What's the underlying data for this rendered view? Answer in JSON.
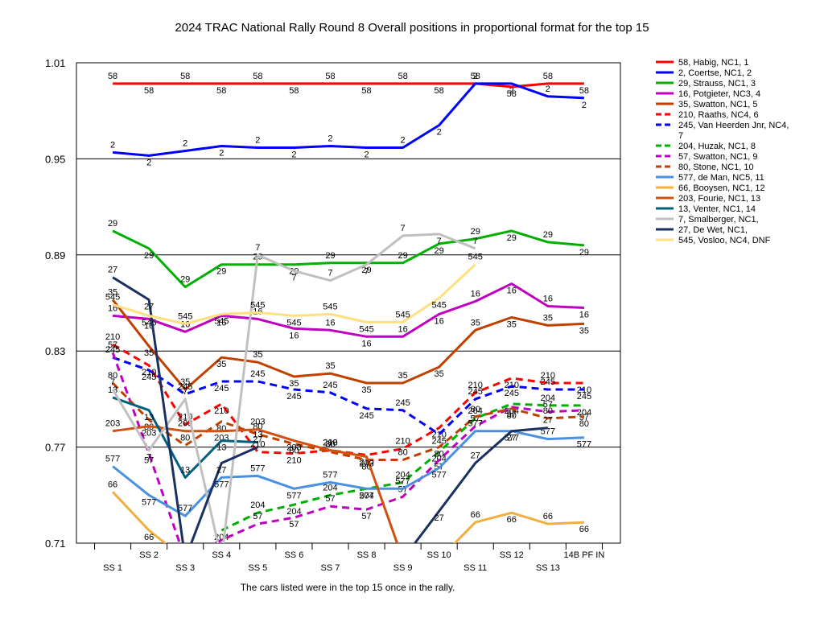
{
  "chart_data": {
    "type": "line",
    "title": "2024 TRAC National Rally Round 8  Overall positions in proportional format for the top 15",
    "footnote": "The cars listed were in the top 15 once in the rally.",
    "categories": [
      "SS 1",
      "SS 2",
      "SS 3",
      "SS 4",
      "SS 5",
      "SS 6",
      "SS 7",
      "SS 8",
      "SS 9",
      "SS 10",
      "SS 11",
      "SS 12",
      "SS 13",
      "14B PF IN"
    ],
    "yticks": [
      "1.01",
      "0.95",
      "0.89",
      "0.83",
      "0.77",
      "0.71"
    ],
    "ylim": [
      0.71,
      1.01
    ],
    "grid": true,
    "legend_position": "right",
    "series": [
      {
        "name": "58, Habig, NC1, 1",
        "label": "58",
        "color": "#ff0000",
        "dash": false,
        "values": [
          0.997,
          0.997,
          0.997,
          0.997,
          0.997,
          0.997,
          0.997,
          0.997,
          0.997,
          0.997,
          0.997,
          0.995,
          0.997,
          0.997
        ]
      },
      {
        "name": "2, Coertse, NC1, 2",
        "label": "2",
        "color": "#0000ff",
        "dash": false,
        "values": [
          0.954,
          0.952,
          0.955,
          0.958,
          0.957,
          0.957,
          0.958,
          0.957,
          0.957,
          0.971,
          0.997,
          0.997,
          0.989,
          0.988
        ]
      },
      {
        "name": "29, Strauss, NC1, 3",
        "label": "29",
        "color": "#00b000",
        "dash": false,
        "values": [
          0.905,
          0.894,
          0.87,
          0.884,
          0.884,
          0.884,
          0.885,
          0.885,
          0.885,
          0.897,
          0.9,
          0.905,
          0.898,
          0.896
        ]
      },
      {
        "name": "16, Potgieter, NC3, 4",
        "label": "16",
        "color": "#c000c0",
        "dash": false,
        "values": [
          0.852,
          0.85,
          0.842,
          0.852,
          0.85,
          0.844,
          0.843,
          0.839,
          0.839,
          0.853,
          0.861,
          0.872,
          0.858,
          0.857
        ]
      },
      {
        "name": "35, Swatton, NC1, 5",
        "label": "35",
        "color": "#c04000",
        "dash": false,
        "values": [
          0.862,
          0.833,
          0.806,
          0.826,
          0.823,
          0.814,
          0.816,
          0.81,
          0.81,
          0.82,
          0.843,
          0.851,
          0.846,
          0.847
        ]
      },
      {
        "name": "210, Raaths, NC4, 6",
        "label": "210",
        "color": "#ff0000",
        "dash": true,
        "values": [
          0.834,
          0.821,
          0.784,
          0.797,
          0.767,
          0.766,
          0.768,
          0.765,
          0.769,
          0.782,
          0.804,
          0.813,
          0.81,
          0.81
        ]
      },
      {
        "name": "245, Van Heerden Jnr, NC4, 7",
        "label": "245",
        "color": "#0000ff",
        "dash": true,
        "values": [
          0.826,
          0.818,
          0.803,
          0.811,
          0.811,
          0.806,
          0.804,
          0.794,
          0.793,
          0.778,
          0.8,
          0.808,
          0.806,
          0.806
        ]
      },
      {
        "name": "204, Huzak, NC1, 8",
        "label": "204",
        "color": "#00b000",
        "dash": true,
        "values": [
          null,
          null,
          null,
          0.718,
          0.729,
          0.734,
          0.74,
          0.744,
          0.748,
          0.767,
          0.788,
          0.797,
          0.796,
          0.796
        ]
      },
      {
        "name": "57, Swatton, NC1, 9",
        "label": "57",
        "color": "#c000c0",
        "dash": true,
        "values": [
          0.829,
          0.766,
          0.7,
          0.712,
          0.722,
          0.726,
          0.733,
          0.731,
          0.739,
          0.762,
          0.783,
          0.795,
          0.792,
          0.793
        ]
      },
      {
        "name": "80, Stone, NC1, 10",
        "label": "80",
        "color": "#c04000",
        "dash": true,
        "values": [
          0.81,
          0.787,
          0.771,
          0.786,
          0.778,
          0.772,
          0.767,
          0.762,
          0.762,
          0.77,
          0.789,
          0.794,
          0.788,
          0.789
        ]
      },
      {
        "name": "577, de Man, NC5, 11",
        "label": "577",
        "color": "#4a90e2",
        "dash": false,
        "values": [
          0.758,
          0.74,
          0.727,
          0.751,
          0.752,
          0.744,
          0.748,
          0.744,
          0.744,
          0.757,
          0.78,
          0.78,
          0.775,
          0.776
        ]
      },
      {
        "name": "66, Booysen, NC1, 12",
        "label": "66",
        "color": "#f0b040",
        "dash": false,
        "values": [
          0.742,
          0.718,
          0.7,
          null,
          null,
          null,
          null,
          null,
          null,
          0.7,
          0.723,
          0.729,
          0.722,
          0.723
        ]
      },
      {
        "name": "203, Fourie, NC1, 13",
        "label": "203",
        "color": "#d05010",
        "dash": false,
        "values": [
          0.78,
          0.783,
          0.78,
          0.78,
          0.781,
          0.774,
          0.768,
          0.764,
          0.7,
          null,
          null,
          null,
          null,
          null
        ]
      },
      {
        "name": "13, Venter, NC1, 14",
        "label": "13",
        "color": "#006080",
        "dash": false,
        "values": [
          0.801,
          0.793,
          0.751,
          0.774,
          0.773,
          null,
          null,
          null,
          null,
          null,
          null,
          null,
          null,
          null
        ]
      },
      {
        "name": "7, Smalberger, NC1,",
        "label": "7",
        "color": "#c0c0c0",
        "dash": false,
        "values": [
          0.806,
          0.768,
          0.8,
          0.7,
          0.89,
          0.88,
          0.874,
          0.884,
          0.902,
          0.903,
          0.894,
          null,
          null,
          null
        ]
      },
      {
        "name": "27, De Wet, NC1,",
        "label": "27",
        "color": "#1a3060",
        "dash": false,
        "values": [
          0.876,
          0.862,
          0.7,
          0.76,
          0.77,
          null,
          null,
          null,
          0.7,
          0.73,
          0.76,
          0.78,
          0.782,
          null
        ]
      },
      {
        "name": "545, Vosloo, NC4,  DNF",
        "label": "545",
        "color": "#ffe080",
        "dash": false,
        "values": [
          0.859,
          0.852,
          0.847,
          0.853,
          0.854,
          0.852,
          0.853,
          0.848,
          0.848,
          0.863,
          0.884,
          null,
          null,
          null
        ]
      }
    ]
  }
}
